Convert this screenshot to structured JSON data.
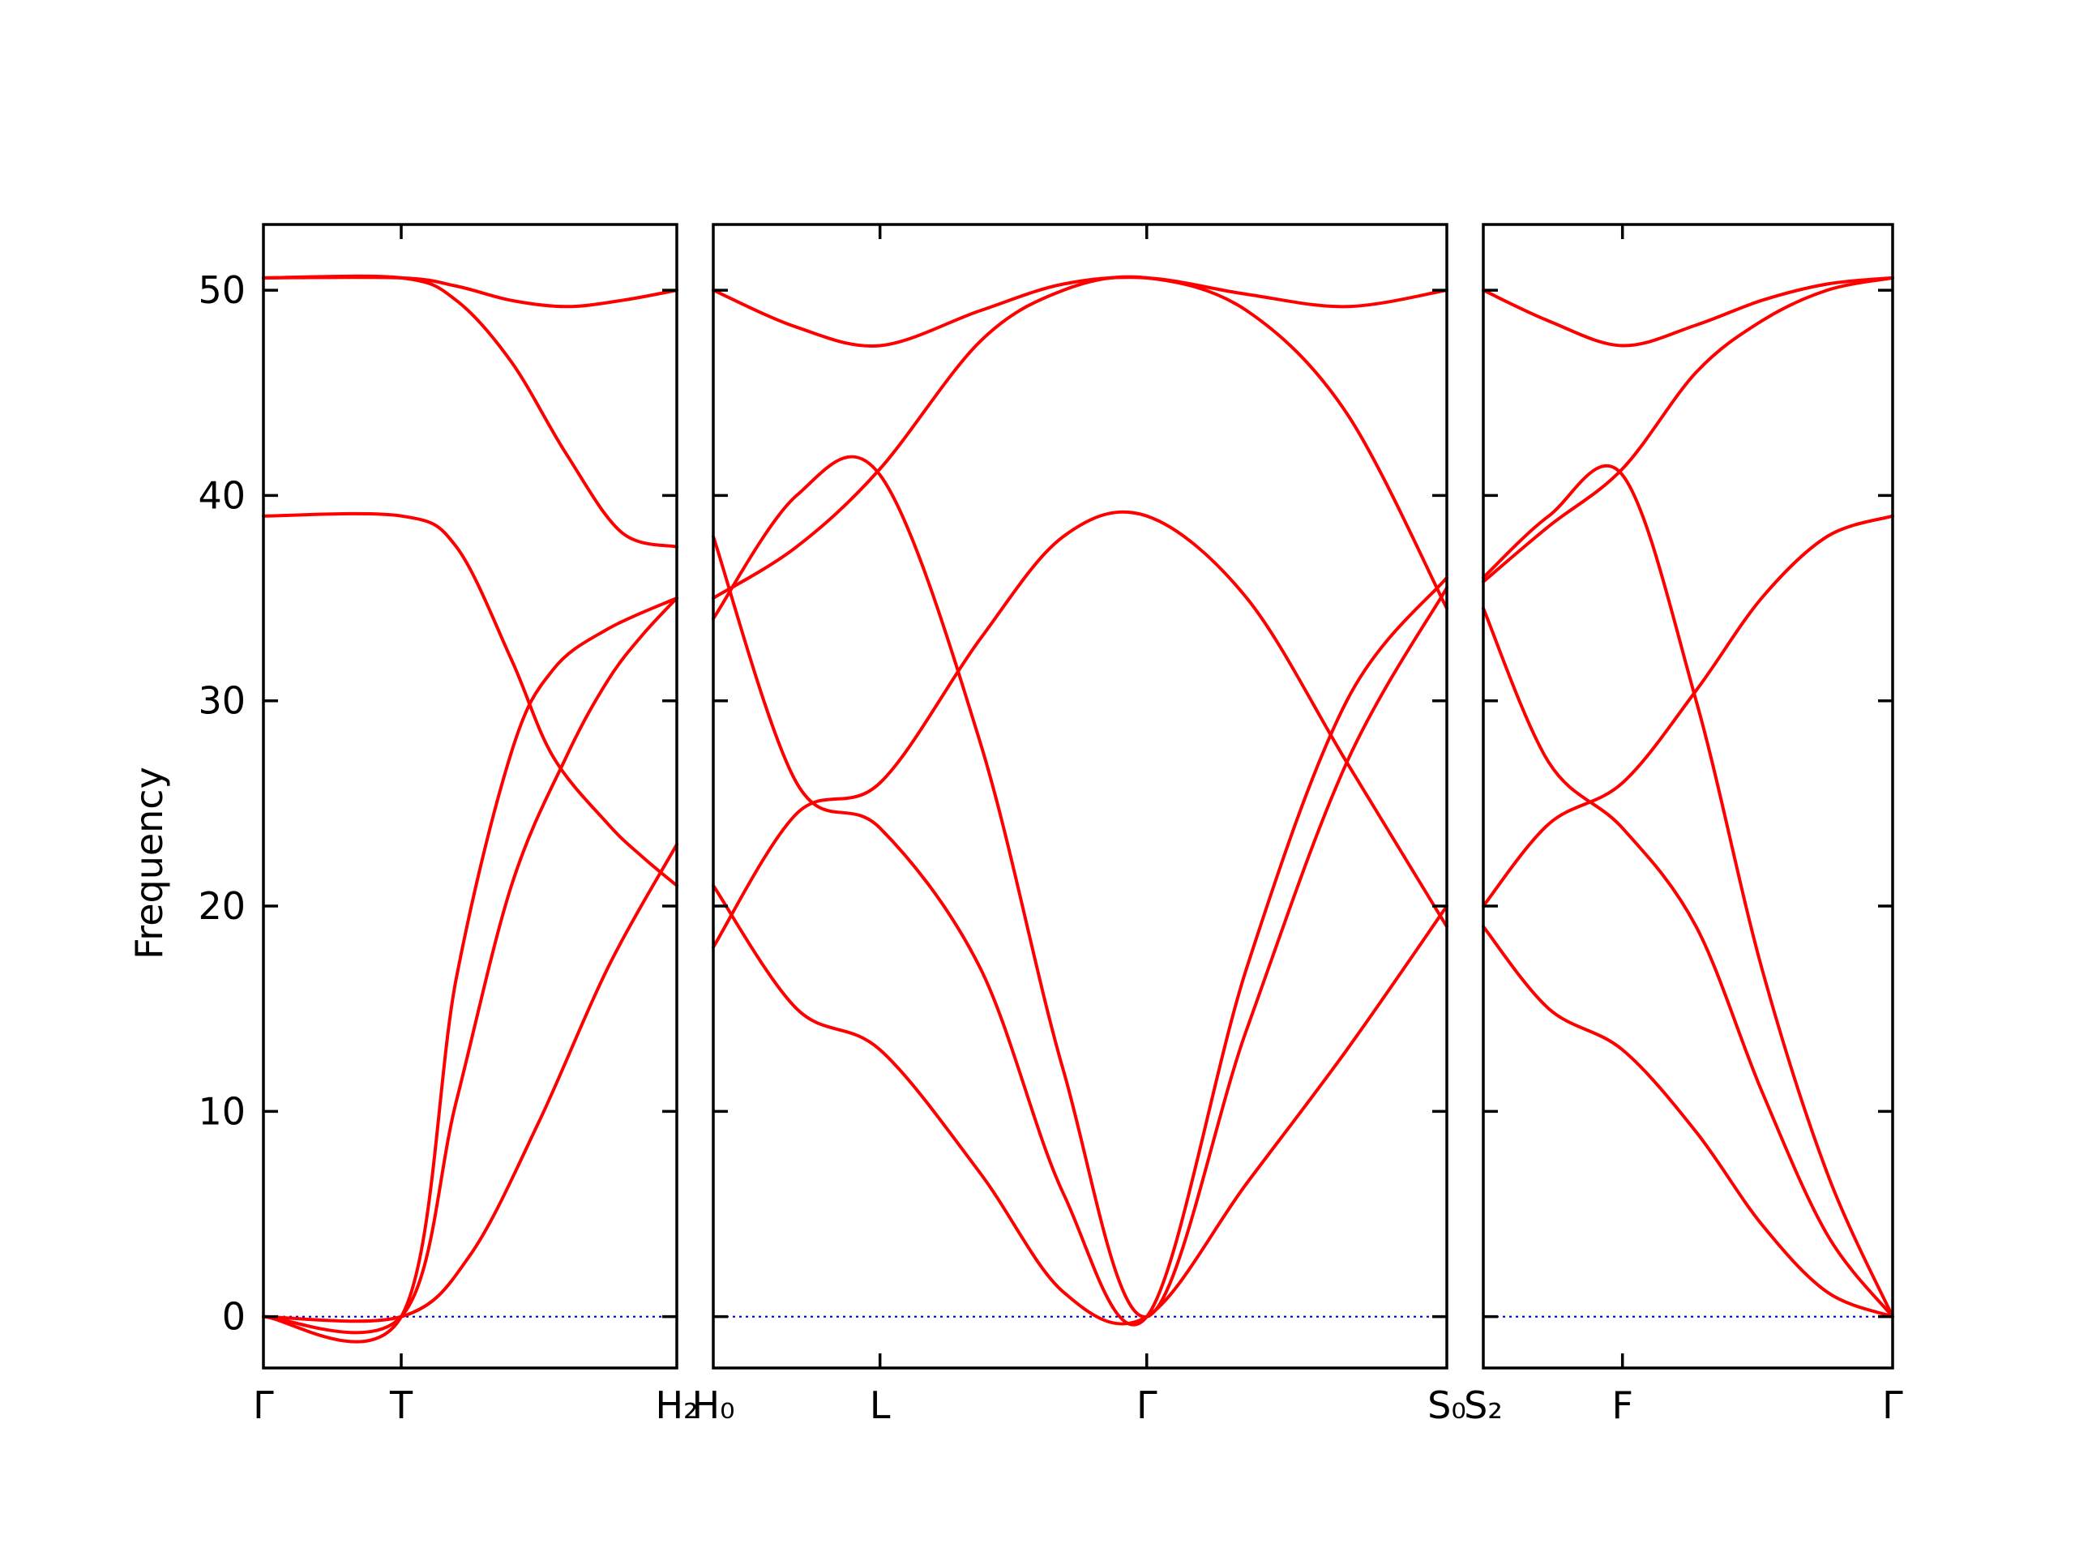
{
  "chart_data": {
    "type": "line",
    "ylabel": "Frequency",
    "ylim": [
      -2.5,
      53.2
    ],
    "yticks": [
      0,
      10,
      20,
      30,
      40,
      50
    ],
    "grid": false,
    "legend": "none",
    "band_color": "#ff0000",
    "zero_line_color": "#0000cc",
    "panels": [
      {
        "name": "panel-gamma-t-h2",
        "xlim": [
          0,
          3
        ],
        "xticks": [
          {
            "x": 0,
            "label": "Γ"
          },
          {
            "x": 1,
            "label": "T"
          },
          {
            "x": 3,
            "label": "H₂"
          }
        ],
        "series": [
          {
            "x": [
              0,
              1,
              1.5,
              2,
              2.5,
              3
            ],
            "y": [
              0,
              0,
              3,
              9.5,
              17,
              23
            ]
          },
          {
            "x": [
              0,
              1,
              1.4,
              1.8,
              2.1,
              2.5,
              3
            ],
            "y": [
              0,
              0,
              16.5,
              27.5,
              31.5,
              33.5,
              35
            ]
          },
          {
            "x": [
              0,
              1,
              1.4,
              1.8,
              2.2,
              2.5,
              2.75,
              3
            ],
            "y": [
              0,
              0,
              10.5,
              21,
              27.3,
              31,
              33.2,
              35
            ]
          },
          {
            "x": [
              0,
              1,
              1.4,
              1.8,
              2.1,
              2.5,
              2.75,
              3
            ],
            "y": [
              39,
              39,
              37.5,
              32,
              27.3,
              24,
              22.4,
              21
            ]
          },
          {
            "x": [
              0,
              1,
              1.4,
              1.8,
              2.2,
              2.6,
              3
            ],
            "y": [
              50.6,
              50.6,
              49.5,
              46.5,
              42,
              38.2,
              37.5
            ]
          },
          {
            "x": [
              0,
              1,
              1.4,
              1.8,
              2.2,
              2.6,
              3
            ],
            "y": [
              50.6,
              50.6,
              50.2,
              49.5,
              49.2,
              49.5,
              50
            ]
          }
        ]
      },
      {
        "name": "panel-h0-l-gamma-s0",
        "xlim": [
          0,
          4.4
        ],
        "xticks": [
          {
            "x": 0,
            "label": "H₀"
          },
          {
            "x": 1,
            "label": "L"
          },
          {
            "x": 2.6,
            "label": "Γ"
          },
          {
            "x": 4.4,
            "label": "S₀"
          }
        ],
        "series": [
          {
            "x": [
              0,
              0.5,
              1,
              1.6,
              2.1,
              2.6,
              3.2,
              3.8,
              4.4
            ],
            "y": [
              21,
              15,
              13,
              7,
              1.2,
              0,
              6.5,
              13,
              20
            ]
          },
          {
            "x": [
              0,
              0.5,
              1,
              1.6,
              2.1,
              2.6,
              3.2,
              3.8,
              4.4
            ],
            "y": [
              18,
              24.5,
              26,
              33,
              38,
              39,
              35,
              27,
              19
            ]
          },
          {
            "x": [
              0,
              0.5,
              1,
              1.6,
              2.1,
              2.6,
              3.2,
              3.8,
              4.4
            ],
            "y": [
              38,
              26,
              23.8,
              17,
              6,
              0,
              17,
              30,
              36
            ]
          },
          {
            "x": [
              0,
              0.5,
              1,
              1.6,
              2.1,
              2.6,
              3.2,
              3.8,
              4.4
            ],
            "y": [
              34,
              40,
              41,
              28,
              12,
              0,
              14,
              27,
              35.5
            ]
          },
          {
            "x": [
              0,
              0.5,
              1,
              1.6,
              2.1,
              2.6,
              3.2,
              3.8,
              4.4
            ],
            "y": [
              35,
              37.5,
              41.3,
              47.5,
              50,
              50.6,
              49,
              44,
              34.5
            ]
          },
          {
            "x": [
              0,
              0.5,
              1,
              1.6,
              2.1,
              2.6,
              3.2,
              3.8,
              4.4
            ],
            "y": [
              50,
              48.2,
              47.3,
              49,
              50.3,
              50.6,
              49.8,
              49.2,
              50
            ]
          }
        ]
      },
      {
        "name": "panel-s2-f-gamma",
        "xlim": [
          0,
          2.5
        ],
        "xticks": [
          {
            "x": 0,
            "label": "S₂"
          },
          {
            "x": 0.85,
            "label": "F"
          },
          {
            "x": 2.5,
            "label": "Γ"
          }
        ],
        "series": [
          {
            "x": [
              0,
              0.4,
              0.85,
              1.3,
              1.7,
              2.1,
              2.5
            ],
            "y": [
              19,
              15,
              13,
              9,
              4.5,
              1.2,
              0
            ]
          },
          {
            "x": [
              0,
              0.4,
              0.85,
              1.3,
              1.7,
              2.1,
              2.5
            ],
            "y": [
              20,
              24,
              26,
              30.5,
              35,
              38,
              39
            ]
          },
          {
            "x": [
              0,
              0.4,
              0.85,
              1.3,
              1.7,
              2.1,
              2.5
            ],
            "y": [
              34.5,
              27,
              23.8,
              19,
              11,
              4,
              0
            ]
          },
          {
            "x": [
              0,
              0.4,
              0.85,
              1.3,
              1.7,
              2.1,
              2.5
            ],
            "y": [
              36,
              39,
              41,
              30,
              17,
              7,
              0
            ]
          },
          {
            "x": [
              0,
              0.4,
              0.85,
              1.3,
              1.7,
              2.1,
              2.5
            ],
            "y": [
              35.8,
              38.5,
              41.3,
              46,
              48.5,
              50,
              50.6
            ]
          },
          {
            "x": [
              0,
              0.4,
              0.85,
              1.3,
              1.7,
              2.1,
              2.5
            ],
            "y": [
              50,
              48.5,
              47.3,
              48.3,
              49.5,
              50.3,
              50.6
            ]
          }
        ]
      }
    ]
  }
}
